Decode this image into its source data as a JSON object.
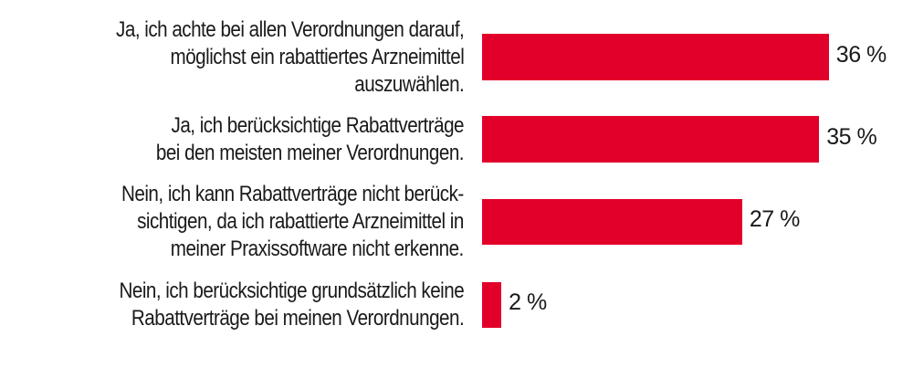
{
  "chart_data": {
    "type": "bar",
    "orientation": "horizontal",
    "categories": [
      [
        "Ja, ich achte bei allen Verordnungen darauf,",
        "möglichst ein rabattiertes Arzneimittel",
        "auszuwählen."
      ],
      [
        "Ja, ich berücksichtige Rabattverträge",
        "bei den meisten meiner Verordnungen."
      ],
      [
        "Nein, ich kann Rabattverträge nicht berück-",
        "sichtigen, da ich rabattierte Arzneimittel in",
        "meiner Praxissoftware nicht erkenne."
      ],
      [
        "Nein, ich berücksichtige grundsätzlich keine",
        "Rabattverträge bei meinen Verordnungen."
      ]
    ],
    "values": [
      36,
      35,
      27,
      2
    ],
    "value_labels": [
      "36 %",
      "35 %",
      "27 %",
      "2 %"
    ],
    "unit": "%",
    "grid": false,
    "legend": "none",
    "bar_color": "#e2002b"
  }
}
